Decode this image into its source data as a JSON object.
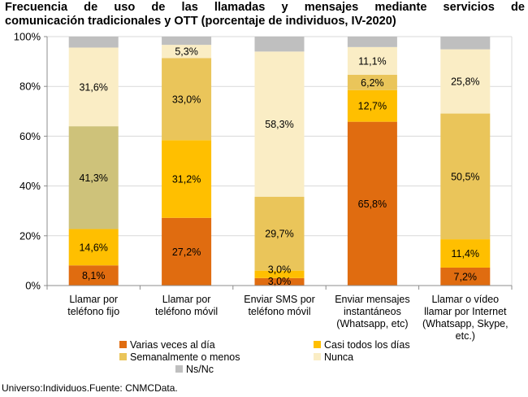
{
  "title_line1": "Frecuencia de uso de las llamadas y mensajes mediante servicios de",
  "title_line2": "comunicación tradicionales y OTT (porcentaje de individuos, IV-2020)",
  "source": "Universo:Individuos.Fuente: CNMCData.",
  "chart_data": {
    "type": "bar",
    "stacked": true,
    "title": "Frecuencia de uso de las llamadas y mensajes mediante servicios de comunicación tradicionales y OTT (porcentaje de individuos, IV-2020)",
    "categories": [
      [
        "Llamar por",
        "teléfono fijo"
      ],
      [
        "Llamar por",
        "teléfono móvil"
      ],
      [
        "Enviar SMS por",
        "teléfono móvil"
      ],
      [
        "Enviar mensajes",
        "instantáneos",
        "(Whatsapp, etc)"
      ],
      [
        "Llamar o vídeo",
        "llamar por Internet",
        "(Whatsapp, Skype,",
        "etc.)"
      ]
    ],
    "series": [
      {
        "name": "Varias veces al día",
        "color": "#E06C10",
        "values": [
          8.1,
          27.2,
          3.0,
          65.8,
          7.2
        ],
        "labels": [
          "8,1%",
          "27,2%",
          "3,0%",
          "65,8%",
          "7,2%"
        ]
      },
      {
        "name": "Casi todos los días",
        "color": "#FFBF00",
        "values": [
          14.6,
          31.2,
          3.0,
          12.7,
          11.4
        ],
        "labels": [
          "14,6%",
          "31,2%",
          "3,0%",
          "12,7%",
          "11,4%"
        ]
      },
      {
        "name": "Semanalmente o menos",
        "color": "#EAC55A",
        "values": [
          41.3,
          33.0,
          29.7,
          6.2,
          50.5
        ],
        "labels": [
          "41,3%",
          "33,0%",
          "29,7%",
          "6,2%",
          "50,5%"
        ],
        "point_colors": [
          "#CEC27A",
          null,
          null,
          null,
          null
        ]
      },
      {
        "name": "Nunca",
        "color": "#FAEDC5",
        "values": [
          31.6,
          5.3,
          58.3,
          11.1,
          25.8
        ],
        "labels": [
          "31,6%",
          "5,3%",
          "58,3%",
          "11,1%",
          "25,8%"
        ]
      },
      {
        "name": "Ns/Nc",
        "color": "#BFBFBF",
        "values": [
          4.4,
          3.3,
          6.0,
          4.2,
          5.1
        ],
        "labels": [
          "",
          "",
          "",
          "",
          ""
        ]
      }
    ],
    "y_ticks": [
      "0%",
      "20%",
      "40%",
      "60%",
      "80%",
      "100%"
    ],
    "ylim": [
      0,
      100
    ],
    "grid": true,
    "legend": "bottom-center"
  }
}
